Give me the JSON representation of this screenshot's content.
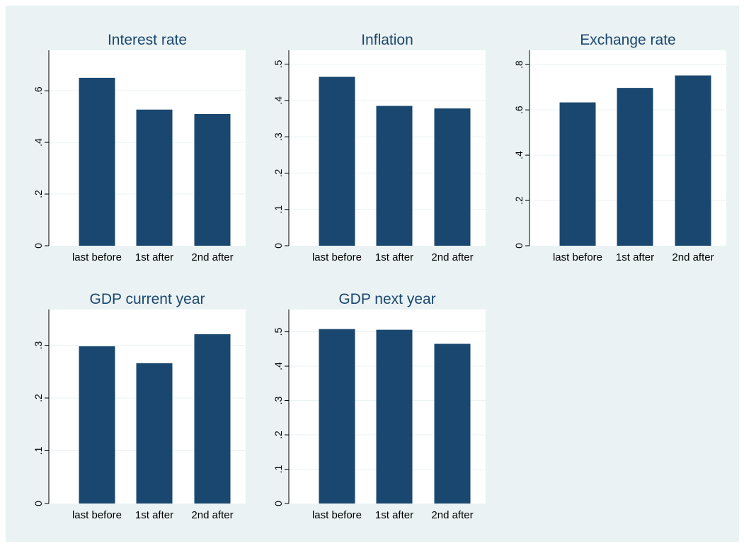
{
  "colors": {
    "bar": "#1a476f",
    "figure_background": "#eaf2f3",
    "plot_background": "#ffffff",
    "title": "#1a476f"
  },
  "chart_data": [
    {
      "type": "bar",
      "title": "Interest rate",
      "categories": [
        "last before",
        "1st after",
        "2nd after"
      ],
      "values": [
        0.65,
        0.527,
        0.51
      ],
      "ylim": [
        0,
        0.71
      ],
      "yticks": [
        0,
        0.2,
        0.4,
        0.6
      ],
      "ytick_labels": [
        "0",
        ".2",
        ".4",
        ".6"
      ],
      "grid": true
    },
    {
      "type": "bar",
      "title": "Inflation",
      "categories": [
        "last before",
        "1st after",
        "2nd after"
      ],
      "values": [
        0.465,
        0.385,
        0.378
      ],
      "ylim": [
        0,
        0.505
      ],
      "yticks": [
        0,
        0.1,
        0.2,
        0.3,
        0.4,
        0.5
      ],
      "ytick_labels": [
        "0",
        ".1",
        ".2",
        ".3",
        ".4",
        ".5"
      ],
      "grid": true
    },
    {
      "type": "bar",
      "title": "Exchange rate",
      "categories": [
        "last before",
        "1st after",
        "2nd after"
      ],
      "values": [
        0.633,
        0.697,
        0.752
      ],
      "ylim": [
        0,
        0.81
      ],
      "yticks": [
        0,
        0.2,
        0.4,
        0.6,
        0.8
      ],
      "ytick_labels": [
        "0",
        ".2",
        ".4",
        ".6",
        ".8"
      ],
      "grid": true
    },
    {
      "type": "bar",
      "title": "GDP current year",
      "categories": [
        "last before",
        "1st after",
        "2nd after"
      ],
      "values": [
        0.298,
        0.266,
        0.321
      ],
      "ylim": [
        0,
        0.345
      ],
      "yticks": [
        0,
        0.1,
        0.2,
        0.3
      ],
      "ytick_labels": [
        "0",
        ".1",
        ".2",
        ".3"
      ],
      "grid": true
    },
    {
      "type": "bar",
      "title": "GDP next year",
      "categories": [
        "last before",
        "1st after",
        "2nd after"
      ],
      "values": [
        0.508,
        0.506,
        0.465
      ],
      "ylim": [
        0,
        0.53
      ],
      "yticks": [
        0,
        0.1,
        0.2,
        0.3,
        0.4,
        0.5
      ],
      "ytick_labels": [
        "0",
        ".1",
        ".2",
        ".3",
        ".4",
        ".5"
      ],
      "grid": true
    }
  ]
}
